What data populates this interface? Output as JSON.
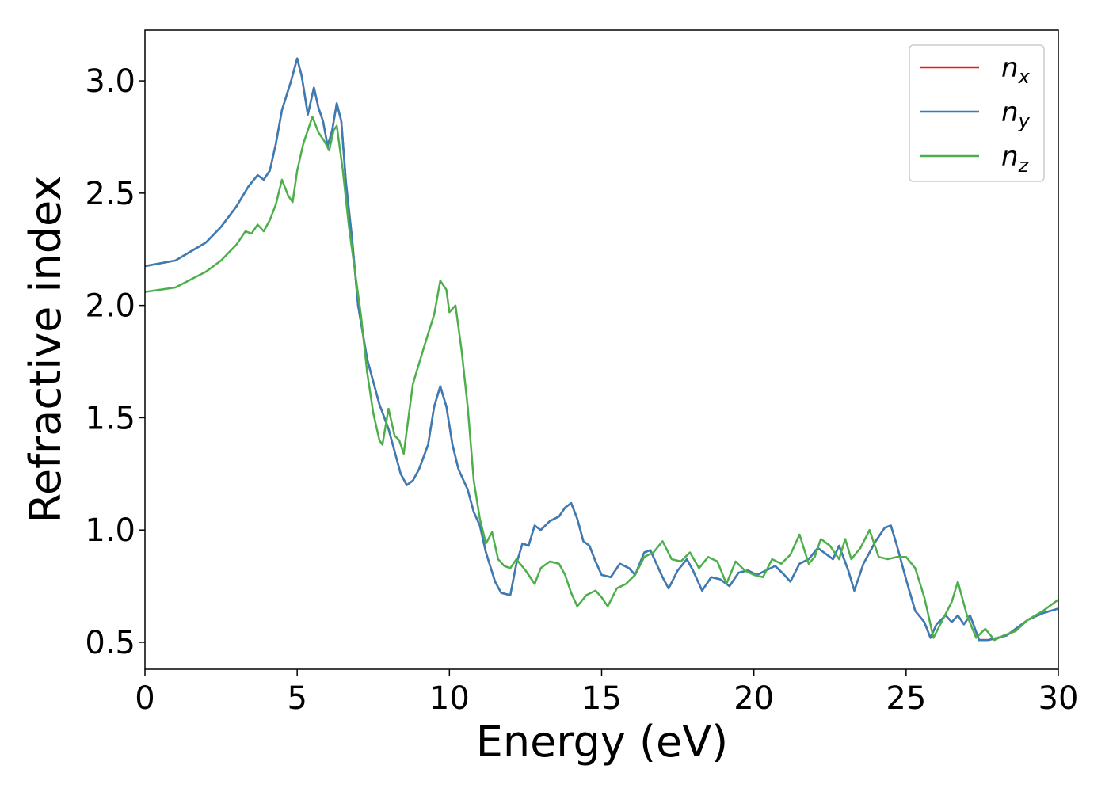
{
  "chart_data": {
    "type": "line",
    "xlabel": "Energy (eV)",
    "ylabel": "Refractive index",
    "xlim": [
      0,
      30
    ],
    "ylim": [
      0.38,
      3.226
    ],
    "xticks": [
      0,
      5,
      10,
      15,
      20,
      25,
      30
    ],
    "yticks": [
      {
        "value": 0.5,
        "label": "0.5"
      },
      {
        "value": 1,
        "label": "1.0"
      },
      {
        "value": 1.5,
        "label": "1.5"
      },
      {
        "value": 2,
        "label": "2.0"
      },
      {
        "value": 2.5,
        "label": "2.5"
      },
      {
        "value": 3,
        "label": "3.0"
      }
    ],
    "legend": "upper right",
    "series": [
      {
        "name": "nx",
        "color": "#e41a1c",
        "x": [
          0,
          1,
          2,
          2.5,
          3,
          3.4,
          3.7,
          3.9,
          4.1,
          4.3,
          4.5,
          4.8,
          5.0,
          5.15,
          5.35,
          5.55,
          5.7,
          5.85,
          6.0,
          6.15,
          6.3,
          6.45,
          6.6,
          6.8,
          7.0,
          7.3,
          7.5,
          7.7,
          8.0,
          8.2,
          8.4,
          8.6,
          8.8,
          9.0,
          9.3,
          9.5,
          9.7,
          9.9,
          10.1,
          10.3,
          10.6,
          10.8,
          11.0,
          11.2,
          11.5,
          11.7,
          12.0,
          12.2,
          12.4,
          12.6,
          12.8,
          13.0,
          13.3,
          13.6,
          13.8,
          14.0,
          14.2,
          14.4,
          14.6,
          14.8,
          15.0,
          15.3,
          15.6,
          15.9,
          16.1,
          16.4,
          16.6,
          16.8,
          17.0,
          17.2,
          17.5,
          17.8,
          18.0,
          18.3,
          18.6,
          18.9,
          19.2,
          19.5,
          19.8,
          20.1,
          20.4,
          20.7,
          21.0,
          21.2,
          21.5,
          21.8,
          22.1,
          22.4,
          22.6,
          22.8,
          23.1,
          23.3,
          23.6,
          24.0,
          24.3,
          24.5,
          24.7,
          25.0,
          25.3,
          25.6,
          25.8,
          26.0,
          26.3,
          26.5,
          26.7,
          26.9,
          27.1,
          27.4,
          27.7,
          28.0,
          28.3,
          28.7,
          29.0,
          29.5,
          30
        ],
        "values": [
          2.175,
          2.2,
          2.28,
          2.35,
          2.44,
          2.53,
          2.58,
          2.56,
          2.6,
          2.72,
          2.87,
          3.0,
          3.1,
          3.02,
          2.85,
          2.97,
          2.88,
          2.82,
          2.71,
          2.78,
          2.9,
          2.82,
          2.55,
          2.3,
          2.0,
          1.76,
          1.66,
          1.56,
          1.45,
          1.35,
          1.25,
          1.2,
          1.22,
          1.27,
          1.38,
          1.55,
          1.64,
          1.55,
          1.38,
          1.27,
          1.18,
          1.08,
          1.02,
          0.9,
          0.77,
          0.72,
          0.71,
          0.85,
          0.94,
          0.93,
          1.02,
          1.0,
          1.04,
          1.06,
          1.1,
          1.12,
          1.05,
          0.95,
          0.93,
          0.86,
          0.8,
          0.79,
          0.85,
          0.83,
          0.8,
          0.9,
          0.91,
          0.85,
          0.79,
          0.74,
          0.82,
          0.87,
          0.82,
          0.73,
          0.79,
          0.78,
          0.75,
          0.81,
          0.82,
          0.8,
          0.82,
          0.84,
          0.8,
          0.77,
          0.85,
          0.87,
          0.92,
          0.89,
          0.87,
          0.93,
          0.82,
          0.73,
          0.85,
          0.95,
          1.01,
          1.02,
          0.93,
          0.78,
          0.64,
          0.59,
          0.52,
          0.58,
          0.62,
          0.59,
          0.62,
          0.58,
          0.62,
          0.51,
          0.51,
          0.52,
          0.53,
          0.57,
          0.6,
          0.63,
          0.65
        ]
      },
      {
        "name": "ny",
        "color": "#377eb8",
        "x": [
          0,
          1,
          2,
          2.5,
          3,
          3.4,
          3.7,
          3.9,
          4.1,
          4.3,
          4.5,
          4.8,
          5.0,
          5.15,
          5.35,
          5.55,
          5.7,
          5.85,
          6.0,
          6.15,
          6.3,
          6.45,
          6.6,
          6.8,
          7.0,
          7.3,
          7.5,
          7.7,
          8.0,
          8.2,
          8.4,
          8.6,
          8.8,
          9.0,
          9.3,
          9.5,
          9.7,
          9.9,
          10.1,
          10.3,
          10.6,
          10.8,
          11.0,
          11.2,
          11.5,
          11.7,
          12.0,
          12.2,
          12.4,
          12.6,
          12.8,
          13.0,
          13.3,
          13.6,
          13.8,
          14.0,
          14.2,
          14.4,
          14.6,
          14.8,
          15.0,
          15.3,
          15.6,
          15.9,
          16.1,
          16.4,
          16.6,
          16.8,
          17.0,
          17.2,
          17.5,
          17.8,
          18.0,
          18.3,
          18.6,
          18.9,
          19.2,
          19.5,
          19.8,
          20.1,
          20.4,
          20.7,
          21.0,
          21.2,
          21.5,
          21.8,
          22.1,
          22.4,
          22.6,
          22.8,
          23.1,
          23.3,
          23.6,
          24.0,
          24.3,
          24.5,
          24.7,
          25.0,
          25.3,
          25.6,
          25.8,
          26.0,
          26.3,
          26.5,
          26.7,
          26.9,
          27.1,
          27.4,
          27.7,
          28.0,
          28.3,
          28.7,
          29.0,
          29.5,
          30
        ],
        "values": [
          2.175,
          2.2,
          2.28,
          2.35,
          2.44,
          2.53,
          2.58,
          2.56,
          2.6,
          2.72,
          2.87,
          3.0,
          3.1,
          3.02,
          2.85,
          2.97,
          2.88,
          2.82,
          2.71,
          2.78,
          2.9,
          2.82,
          2.55,
          2.3,
          2.0,
          1.76,
          1.66,
          1.56,
          1.45,
          1.35,
          1.25,
          1.2,
          1.22,
          1.27,
          1.38,
          1.55,
          1.64,
          1.55,
          1.38,
          1.27,
          1.18,
          1.08,
          1.02,
          0.9,
          0.77,
          0.72,
          0.71,
          0.85,
          0.94,
          0.93,
          1.02,
          1.0,
          1.04,
          1.06,
          1.1,
          1.12,
          1.05,
          0.95,
          0.93,
          0.86,
          0.8,
          0.79,
          0.85,
          0.83,
          0.8,
          0.9,
          0.91,
          0.85,
          0.79,
          0.74,
          0.82,
          0.87,
          0.82,
          0.73,
          0.79,
          0.78,
          0.75,
          0.81,
          0.82,
          0.8,
          0.82,
          0.84,
          0.8,
          0.77,
          0.85,
          0.87,
          0.92,
          0.89,
          0.87,
          0.93,
          0.82,
          0.73,
          0.85,
          0.95,
          1.01,
          1.02,
          0.93,
          0.78,
          0.64,
          0.59,
          0.52,
          0.58,
          0.62,
          0.59,
          0.62,
          0.58,
          0.62,
          0.51,
          0.51,
          0.52,
          0.53,
          0.57,
          0.6,
          0.63,
          0.65
        ]
      },
      {
        "name": "nz",
        "color": "#4daf4a",
        "x": [
          0,
          1,
          2,
          2.5,
          3.0,
          3.3,
          3.5,
          3.7,
          3.9,
          4.1,
          4.3,
          4.5,
          4.7,
          4.85,
          5.0,
          5.2,
          5.5,
          5.7,
          5.9,
          6.05,
          6.2,
          6.3,
          6.5,
          6.7,
          6.9,
          7.1,
          7.3,
          7.5,
          7.7,
          7.8,
          8.0,
          8.2,
          8.35,
          8.5,
          8.8,
          9.2,
          9.5,
          9.7,
          9.9,
          10.0,
          10.2,
          10.4,
          10.6,
          10.8,
          11.0,
          11.2,
          11.4,
          11.6,
          11.8,
          12.0,
          12.2,
          12.5,
          12.8,
          13.0,
          13.3,
          13.6,
          13.8,
          14.0,
          14.2,
          14.5,
          14.8,
          15.0,
          15.2,
          15.5,
          15.8,
          16.1,
          16.4,
          16.7,
          17.0,
          17.3,
          17.6,
          17.9,
          18.2,
          18.5,
          18.8,
          19.1,
          19.4,
          19.7,
          20.0,
          20.3,
          20.6,
          20.9,
          21.2,
          21.5,
          21.8,
          22.0,
          22.2,
          22.5,
          22.8,
          23.0,
          23.2,
          23.5,
          23.8,
          24.1,
          24.4,
          24.7,
          25.0,
          25.3,
          25.6,
          25.9,
          26.2,
          26.5,
          26.7,
          27.0,
          27.3,
          27.6,
          27.9,
          28.2,
          28.6,
          29.0,
          29.5,
          30
        ],
        "values": [
          2.06,
          2.08,
          2.15,
          2.2,
          2.27,
          2.33,
          2.32,
          2.36,
          2.33,
          2.38,
          2.45,
          2.56,
          2.49,
          2.46,
          2.6,
          2.72,
          2.84,
          2.77,
          2.73,
          2.69,
          2.78,
          2.8,
          2.6,
          2.35,
          2.15,
          1.95,
          1.7,
          1.52,
          1.4,
          1.38,
          1.54,
          1.42,
          1.4,
          1.34,
          1.65,
          1.83,
          1.96,
          2.11,
          2.07,
          1.97,
          2.0,
          1.8,
          1.55,
          1.22,
          1.05,
          0.94,
          0.99,
          0.87,
          0.84,
          0.83,
          0.87,
          0.82,
          0.76,
          0.83,
          0.86,
          0.85,
          0.8,
          0.72,
          0.66,
          0.71,
          0.73,
          0.7,
          0.66,
          0.74,
          0.76,
          0.8,
          0.88,
          0.9,
          0.95,
          0.87,
          0.86,
          0.9,
          0.83,
          0.88,
          0.86,
          0.76,
          0.86,
          0.82,
          0.8,
          0.79,
          0.87,
          0.85,
          0.89,
          0.98,
          0.85,
          0.88,
          0.96,
          0.93,
          0.87,
          0.96,
          0.87,
          0.92,
          1.0,
          0.88,
          0.87,
          0.88,
          0.88,
          0.83,
          0.7,
          0.52,
          0.6,
          0.68,
          0.77,
          0.62,
          0.52,
          0.56,
          0.51,
          0.53,
          0.55,
          0.6,
          0.64,
          0.69
        ]
      }
    ]
  }
}
